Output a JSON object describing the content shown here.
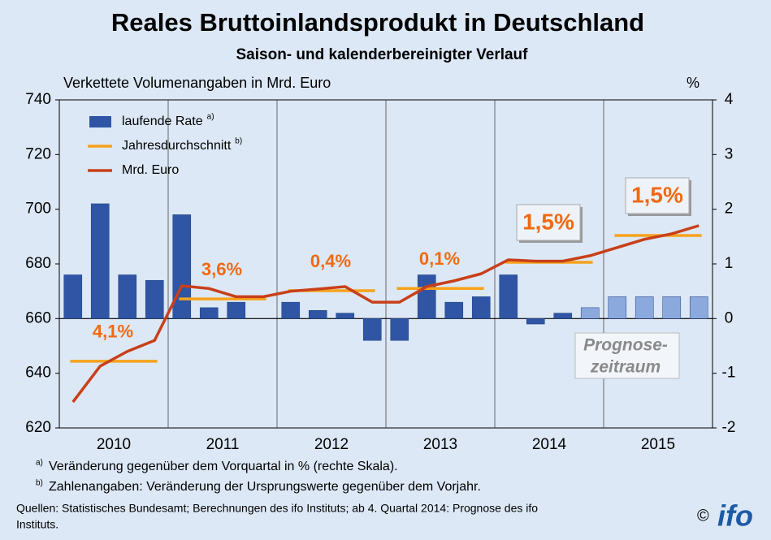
{
  "chart_data": {
    "type": "bar_line",
    "title": "Reales Bruttoinlandsprodukt  in Deutschland",
    "subtitle": "Saison- und kalenderbereinigter Verlauf",
    "y_label": "Verkettete Volumenangaben  in Mrd. Euro",
    "y2_label": "%",
    "years": [
      "2010",
      "2011",
      "2012",
      "2013",
      "2014",
      "2015"
    ],
    "ylim": [
      620,
      740
    ],
    "yticks": [
      620,
      640,
      660,
      680,
      700,
      720,
      740
    ],
    "y2lim": [
      -2,
      4
    ],
    "y2ticks": [
      -2,
      -1,
      0,
      1,
      2,
      3,
      4
    ],
    "series": [
      {
        "name": "laufende Rate",
        "note": "a)",
        "kind": "bar",
        "axis": "y2",
        "color": "#2f55a4",
        "colors": [
          "#2f55a4",
          "#2f55a4",
          "#2f55a4",
          "#2f55a4",
          "#2f55a4",
          "#2f55a4",
          "#2f55a4",
          "#2f55a4",
          "#2f55a4",
          "#2f55a4",
          "#2f55a4",
          "#2f55a4",
          "#2f55a4",
          "#2f55a4",
          "#2f55a4",
          "#2f55a4",
          "#2f55a4",
          "#2f55a4",
          "#2f55a4",
          "#8ca9de",
          "#8ca9de",
          "#8ca9de",
          "#8ca9de",
          "#8ca9de"
        ],
        "values": [
          0.8,
          2.1,
          0.8,
          0.7,
          1.9,
          0.2,
          0.3,
          0,
          0.3,
          0.15,
          0.1,
          -0.4,
          -0.4,
          0.8,
          0.3,
          0.4,
          0.8,
          -0.1,
          0.1,
          0.2,
          0.4,
          0.4,
          0.4,
          0.4
        ]
      },
      {
        "name": "Jahresdurchschnitt",
        "note": "b)",
        "kind": "annual",
        "color": "#f7a21b",
        "values": [
          644.4,
          667.2,
          670.2,
          671,
          680.6,
          690.4
        ],
        "labels": [
          "4,1%",
          "3,6%",
          "0,4%",
          "0,1%",
          "1,5%",
          "1,5%"
        ],
        "labels_boxed": [
          false,
          false,
          false,
          false,
          true,
          true
        ],
        "label_color": "#f06a12"
      },
      {
        "name": "Mrd. Euro",
        "kind": "line",
        "color": "#c8401a",
        "values": [
          629.5,
          642.6,
          648,
          652,
          672,
          671,
          668,
          668,
          670,
          670.8,
          671.7,
          666,
          666,
          671.7,
          673.8,
          676.4,
          681.5,
          681,
          681,
          683,
          686,
          689,
          691,
          694
        ]
      }
    ],
    "forecast_label": [
      "Prognose-",
      "zeitraum"
    ],
    "footnotes": [
      {
        "mark": "a)",
        "text": "Veränderung gegenüber dem Vorquartal in % (rechte Skala)."
      },
      {
        "mark": "b)",
        "text": "Zahlenangaben: Veränderung der Ursprungswerte gegenüber dem Vorjahr."
      }
    ],
    "source": [
      "Quellen:  Statistisches  Bundesamt;  Berechnungen  des  ifo  Instituts;  ab  4.  Quartal  2014:  Prognose  des  ifo",
      "Instituts."
    ],
    "copyright": "©",
    "logo": "ifo"
  }
}
